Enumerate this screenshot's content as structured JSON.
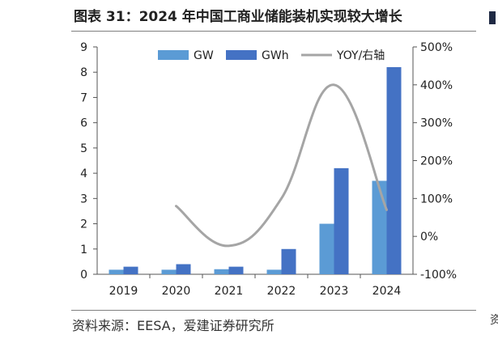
{
  "figure": {
    "title": "图表 31：2024 年中国工商业储能装机实现较大增长",
    "source": "资料来源：EESA，爱建证券研究所"
  },
  "chart_data": {
    "type": "bar",
    "categories": [
      "2019",
      "2020",
      "2021",
      "2022",
      "2023",
      "2024"
    ],
    "series": [
      {
        "name": "GW",
        "kind": "bar",
        "axis": "left",
        "color": "#5b9bd5",
        "values": [
          0.18,
          0.18,
          0.2,
          0.18,
          2.0,
          3.7
        ]
      },
      {
        "name": "GWh",
        "kind": "bar",
        "axis": "left",
        "color": "#4472c4",
        "values": [
          0.3,
          0.4,
          0.3,
          1.0,
          4.2,
          8.2
        ]
      },
      {
        "name": "YOY/右轴",
        "kind": "line",
        "axis": "right",
        "color": "#a5a5a5",
        "values": [
          null,
          80,
          -25,
          100,
          400,
          70
        ]
      }
    ],
    "left_axis": {
      "min": 0,
      "max": 9,
      "ticks": [
        "0",
        "1",
        "2",
        "3",
        "4",
        "5",
        "6",
        "7",
        "8",
        "9"
      ]
    },
    "right_axis": {
      "min": -100,
      "max": 500,
      "ticks": [
        "-100%",
        "0%",
        "100%",
        "200%",
        "300%",
        "400%",
        "500%"
      ]
    },
    "grid": false,
    "legend_position": "top"
  },
  "colors": {
    "gw": "#5b9bd5",
    "gwh": "#4472c4",
    "yoy": "#a5a5a5",
    "axis": "#555555"
  }
}
